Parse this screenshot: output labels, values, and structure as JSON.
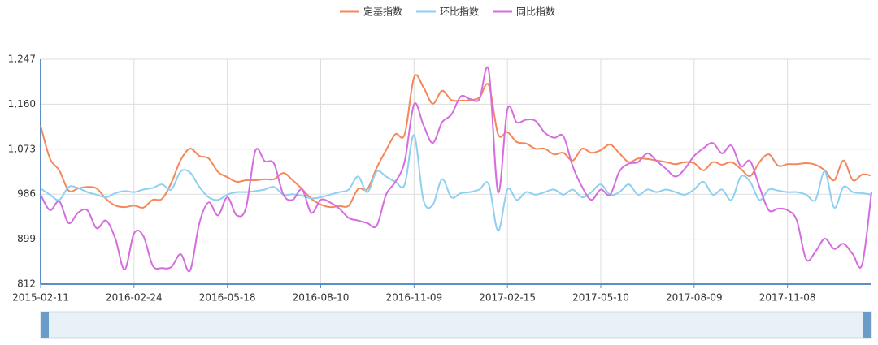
{
  "chart_data": {
    "type": "line",
    "categories": [
      "2015-02-11",
      null,
      null,
      null,
      null,
      null,
      null,
      null,
      null,
      null,
      "2016-02-24",
      null,
      null,
      null,
      null,
      null,
      null,
      null,
      null,
      null,
      "2016-05-18",
      null,
      null,
      null,
      null,
      null,
      null,
      null,
      null,
      null,
      "2016-08-10",
      null,
      null,
      null,
      null,
      null,
      null,
      null,
      null,
      null,
      "2016-11-09",
      null,
      null,
      null,
      null,
      null,
      null,
      null,
      null,
      null,
      "2017-02-15",
      null,
      null,
      null,
      null,
      null,
      null,
      null,
      null,
      null,
      "2017-05-10",
      null,
      null,
      null,
      null,
      null,
      null,
      null,
      null,
      null,
      "2017-08-09",
      null,
      null,
      null,
      null,
      null,
      null,
      null,
      null,
      null,
      "2017-11-08",
      null,
      null,
      null,
      null,
      null,
      null,
      null,
      null,
      null
    ],
    "series": [
      {
        "name": "定基指数",
        "color": "#f5875a",
        "values": [
          1118,
          1055,
          1032,
          993,
          997,
          1000,
          997,
          977,
          964,
          961,
          964,
          960,
          975,
          977,
          1008,
          1052,
          1074,
          1060,
          1055,
          1029,
          1019,
          1010,
          1013,
          1013,
          1015,
          1015,
          1027,
          1013,
          996,
          977,
          966,
          961,
          963,
          964,
          996,
          996,
          1037,
          1071,
          1102,
          1102,
          1212,
          1193,
          1161,
          1186,
          1168,
          1167,
          1168,
          1173,
          1197,
          1102,
          1106,
          1087,
          1084,
          1074,
          1074,
          1063,
          1066,
          1051,
          1074,
          1066,
          1071,
          1082,
          1065,
          1048,
          1055,
          1054,
          1051,
          1048,
          1044,
          1048,
          1046,
          1032,
          1048,
          1043,
          1048,
          1035,
          1021,
          1048,
          1063,
          1041,
          1044,
          1044,
          1046,
          1043,
          1032,
          1013,
          1051,
          1013,
          1024,
          1022
        ]
      },
      {
        "name": "环比指数",
        "color": "#8fd0f0",
        "values": [
          997,
          985,
          975,
          1000,
          998,
          990,
          985,
          980,
          988,
          992,
          990,
          995,
          998,
          1005,
          995,
          1030,
          1028,
          1000,
          980,
          975,
          985,
          990,
          990,
          992,
          995,
          1000,
          985,
          986,
          983,
          978,
          980,
          985,
          990,
          995,
          1020,
          990,
          1030,
          1020,
          1010,
          1005,
          1100,
          975,
          965,
          1015,
          980,
          988,
          990,
          995,
          1005,
          915,
          995,
          975,
          990,
          985,
          990,
          995,
          985,
          995,
          980,
          990,
          1005,
          985,
          990,
          1005,
          985,
          995,
          990,
          995,
          990,
          985,
          995,
          1010,
          985,
          995,
          975,
          1020,
          1010,
          975,
          995,
          993,
          990,
          990,
          985,
          975,
          1030,
          960,
          1000,
          990,
          988,
          985
        ]
      },
      {
        "name": "同比指数",
        "color": "#d56ddf",
        "values": [
          985,
          955,
          972,
          930,
          950,
          955,
          920,
          935,
          900,
          840,
          910,
          905,
          848,
          843,
          845,
          870,
          838,
          930,
          970,
          945,
          980,
          945,
          960,
          1070,
          1050,
          1045,
          985,
          975,
          995,
          950,
          975,
          970,
          958,
          940,
          935,
          930,
          925,
          985,
          1010,
          1050,
          1160,
          1120,
          1085,
          1125,
          1140,
          1175,
          1170,
          1170,
          1225,
          990,
          1150,
          1125,
          1130,
          1128,
          1105,
          1095,
          1098,
          1040,
          1000,
          975,
          995,
          985,
          1030,
          1045,
          1048,
          1065,
          1050,
          1035,
          1020,
          1035,
          1060,
          1075,
          1085,
          1065,
          1080,
          1040,
          1050,
          1000,
          955,
          958,
          955,
          935,
          860,
          875,
          900,
          880,
          890,
          870,
          850,
          990
        ]
      }
    ],
    "ylim": [
      812,
      1247
    ],
    "yticks": [
      812,
      899,
      986,
      {
        "value": 1073,
        "label": "1,073"
      },
      {
        "value": 1160,
        "label": "1,160"
      },
      {
        "value": 1247,
        "label": "1,247"
      }
    ],
    "grid": true
  }
}
